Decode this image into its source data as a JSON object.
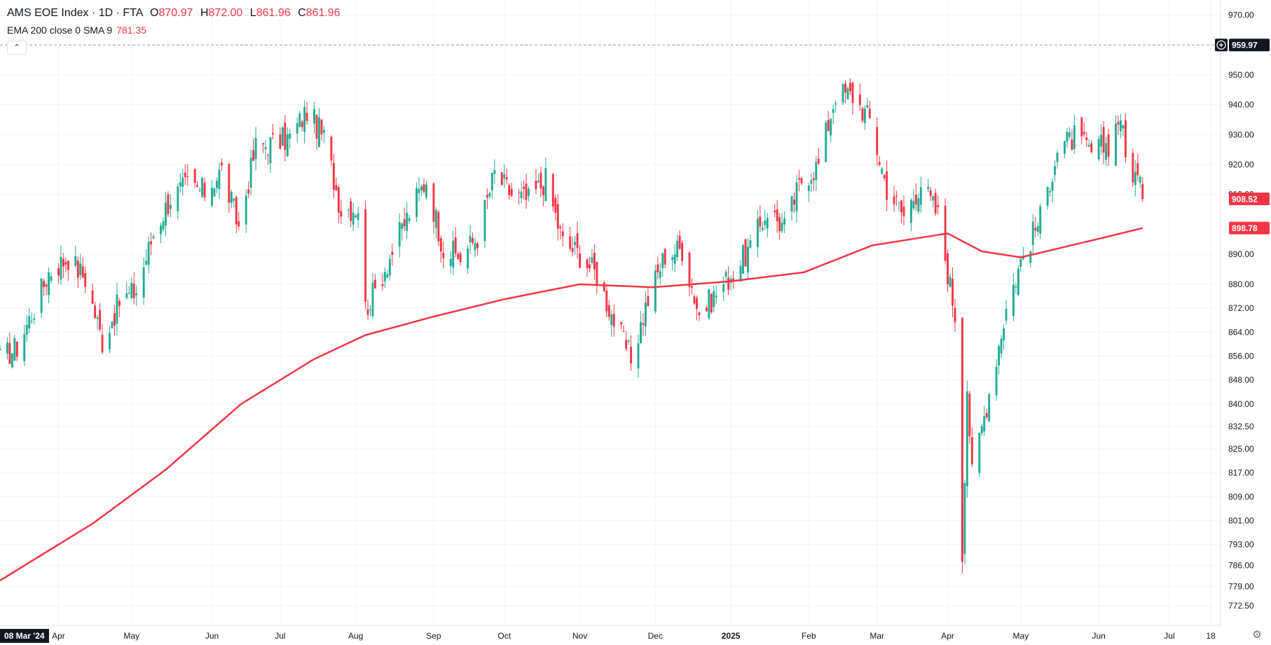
{
  "header": {
    "symbol": "AMS EOE Index · 1D · FTA",
    "open_label": "O",
    "open": "870.97",
    "high_label": "H",
    "high": "872.00",
    "low_label": "L",
    "low": "861.96",
    "close_label": "C",
    "close": "861.96",
    "indicator": "EMA 200 close 0 SMA 9",
    "indicator_value": "781.35"
  },
  "controls": {
    "collapse_icon": "chevron-up-icon",
    "collapse_glyph": "⌃",
    "settings_icon": "gear-icon",
    "settings_glyph": "⚙",
    "add_icon": "plus-circle-icon"
  },
  "crosshair": {
    "date_label": "08 Mar '24"
  },
  "colors": {
    "up": "#22ab94",
    "down": "#f23645",
    "ema": "#f23645",
    "grid": "#f0f3fa",
    "badge_dark": "#131722"
  },
  "chart_data": {
    "type": "candlestick",
    "title": "AMS EOE Index · 1D · FTA",
    "ylim": [
      766,
      975
    ],
    "grid": true,
    "y_ticks": [
      {
        "label": "970.00",
        "value": 970
      },
      {
        "label": "950.00",
        "value": 950
      },
      {
        "label": "940.00",
        "value": 940
      },
      {
        "label": "930.00",
        "value": 930
      },
      {
        "label": "920.00",
        "value": 920
      },
      {
        "label": "910.00",
        "value": 910
      },
      {
        "label": "890.00",
        "value": 890
      },
      {
        "label": "880.00",
        "value": 880
      },
      {
        "label": "872.00",
        "value": 872
      },
      {
        "label": "864.00",
        "value": 864
      },
      {
        "label": "856.00",
        "value": 856
      },
      {
        "label": "848.00",
        "value": 848
      },
      {
        "label": "840.00",
        "value": 840
      },
      {
        "label": "832.50",
        "value": 832.5
      },
      {
        "label": "825.00",
        "value": 825
      },
      {
        "label": "817.00",
        "value": 817
      },
      {
        "label": "809.00",
        "value": 809
      },
      {
        "label": "801.00",
        "value": 801
      },
      {
        "label": "793.00",
        "value": 793
      },
      {
        "label": "786.00",
        "value": 786
      },
      {
        "label": "779.00",
        "value": 779
      },
      {
        "label": "772.50",
        "value": 772.5
      }
    ],
    "x_ticks": [
      {
        "label": "Apr",
        "date": "2024-04-01"
      },
      {
        "label": "May",
        "date": "2024-05-01"
      },
      {
        "label": "Jun",
        "date": "2024-06-03"
      },
      {
        "label": "Jul",
        "date": "2024-07-01"
      },
      {
        "label": "Aug",
        "date": "2024-08-01"
      },
      {
        "label": "Sep",
        "date": "2024-09-02"
      },
      {
        "label": "Oct",
        "date": "2024-10-01"
      },
      {
        "label": "Nov",
        "date": "2024-11-01"
      },
      {
        "label": "Dec",
        "date": "2024-12-02"
      },
      {
        "label": "2025",
        "date": "2025-01-02",
        "bold": true
      },
      {
        "label": "Feb",
        "date": "2025-02-03"
      },
      {
        "label": "Mar",
        "date": "2025-03-03"
      },
      {
        "label": "Apr",
        "date": "2025-04-01"
      },
      {
        "label": "May",
        "date": "2025-05-01"
      },
      {
        "label": "Jun",
        "date": "2025-06-02"
      },
      {
        "label": "Jul",
        "date": "2025-07-01"
      },
      {
        "label": "18",
        "date": "2025-07-18"
      }
    ],
    "price_tags": [
      {
        "label": "959.97",
        "value": 959.97,
        "style": "dark"
      },
      {
        "label": "908.52",
        "value": 908.52,
        "style": "red"
      },
      {
        "label": "898.78",
        "value": 898.78,
        "style": "red"
      }
    ],
    "reference_line": 959.97,
    "series": [
      {
        "name": "AMS EOE Index",
        "type": "candlestick",
        "anchors": [
          [
            "2024-03-08",
            855
          ],
          [
            "2024-03-15",
            859
          ],
          [
            "2024-03-22",
            872
          ],
          [
            "2024-03-28",
            884
          ],
          [
            "2024-04-05",
            889
          ],
          [
            "2024-04-12",
            882
          ],
          [
            "2024-04-19",
            861
          ],
          [
            "2024-04-26",
            874
          ],
          [
            "2024-05-03",
            878
          ],
          [
            "2024-05-10",
            897
          ],
          [
            "2024-05-17",
            909
          ],
          [
            "2024-05-24",
            913
          ],
          [
            "2024-05-31",
            911
          ],
          [
            "2024-06-07",
            918
          ],
          [
            "2024-06-14",
            899
          ],
          [
            "2024-06-21",
            926
          ],
          [
            "2024-06-28",
            927
          ],
          [
            "2024-07-05",
            929
          ],
          [
            "2024-07-12",
            938
          ],
          [
            "2024-07-19",
            929
          ],
          [
            "2024-07-26",
            905
          ],
          [
            "2024-08-02",
            906
          ],
          [
            "2024-08-05",
            872
          ],
          [
            "2024-08-09",
            878
          ],
          [
            "2024-08-16",
            891
          ],
          [
            "2024-08-23",
            904
          ],
          [
            "2024-08-30",
            915
          ],
          [
            "2024-09-06",
            892
          ],
          [
            "2024-09-13",
            889
          ],
          [
            "2024-09-20",
            896
          ],
          [
            "2024-09-27",
            917
          ],
          [
            "2024-10-04",
            910
          ],
          [
            "2024-10-11",
            908
          ],
          [
            "2024-10-18",
            915
          ],
          [
            "2024-10-25",
            894
          ],
          [
            "2024-11-01",
            890
          ],
          [
            "2024-11-08",
            883
          ],
          [
            "2024-11-15",
            868
          ],
          [
            "2024-11-22",
            855
          ],
          [
            "2024-11-29",
            875
          ],
          [
            "2024-12-06",
            890
          ],
          [
            "2024-12-13",
            892
          ],
          [
            "2024-12-20",
            870
          ],
          [
            "2024-12-31",
            881
          ],
          [
            "2025-01-10",
            892
          ],
          [
            "2025-01-17",
            905
          ],
          [
            "2025-01-24",
            899
          ],
          [
            "2025-01-31",
            915
          ],
          [
            "2025-02-07",
            920
          ],
          [
            "2025-02-14",
            944
          ],
          [
            "2025-02-21",
            943
          ],
          [
            "2025-02-28",
            935
          ],
          [
            "2025-03-07",
            912
          ],
          [
            "2025-03-14",
            903
          ],
          [
            "2025-03-21",
            914
          ],
          [
            "2025-03-28",
            903
          ],
          [
            "2025-04-04",
            870
          ],
          [
            "2025-04-07",
            790
          ],
          [
            "2025-04-09",
            846
          ],
          [
            "2025-04-11",
            816
          ],
          [
            "2025-04-17",
            840
          ],
          [
            "2025-04-25",
            872
          ],
          [
            "2025-05-02",
            890
          ],
          [
            "2025-05-09",
            902
          ],
          [
            "2025-05-16",
            925
          ],
          [
            "2025-05-23",
            929
          ],
          [
            "2025-05-30",
            924
          ],
          [
            "2025-06-06",
            927
          ],
          [
            "2025-06-11",
            937
          ],
          [
            "2025-06-13",
            922
          ],
          [
            "2025-06-18",
            915
          ],
          [
            "2025-06-20",
            908.52
          ]
        ]
      },
      {
        "name": "EMA 200 close 0",
        "type": "line",
        "points": [
          [
            "2024-03-08",
            781
          ],
          [
            "2024-04-15",
            800
          ],
          [
            "2024-05-15",
            818
          ],
          [
            "2024-06-15",
            840
          ],
          [
            "2024-07-15",
            855
          ],
          [
            "2024-08-05",
            863
          ],
          [
            "2024-09-01",
            869
          ],
          [
            "2024-10-01",
            875
          ],
          [
            "2024-11-01",
            880
          ],
          [
            "2024-12-01",
            879
          ],
          [
            "2025-01-02",
            881
          ],
          [
            "2025-02-01",
            884
          ],
          [
            "2025-03-01",
            893
          ],
          [
            "2025-04-01",
            897
          ],
          [
            "2025-04-15",
            891
          ],
          [
            "2025-05-01",
            889
          ],
          [
            "2025-06-01",
            895
          ],
          [
            "2025-06-20",
            898.78
          ]
        ]
      }
    ]
  }
}
